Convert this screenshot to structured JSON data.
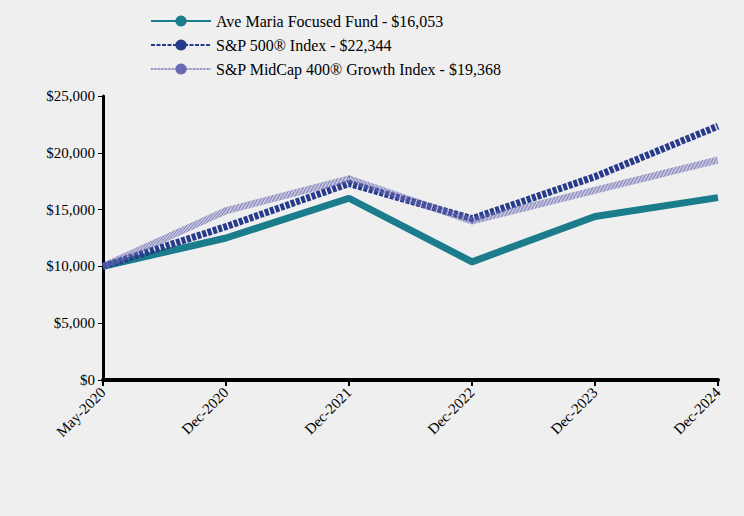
{
  "chart_data": {
    "type": "line",
    "categories": [
      "May-2020",
      "Dec-2020",
      "Dec-2021",
      "Dec-2022",
      "Dec-2023",
      "Dec-2024"
    ],
    "series": [
      {
        "name": "Ave Maria Focused Fund - $16,053",
        "color": "#1b7d8c",
        "line_style": "solid",
        "values": [
          10000,
          12500,
          16000,
          10400,
          14400,
          16053
        ]
      },
      {
        "name": "S&P 500® Index - $22,344",
        "color": "#283a8a",
        "line_style": "dashed",
        "values": [
          10000,
          13500,
          17300,
          14200,
          17900,
          22344
        ]
      },
      {
        "name": "S&P MidCap 400® Growth Index - $19,368",
        "color": "#6a6ab4",
        "line_style": "dotted",
        "values": [
          10000,
          14900,
          17700,
          14000,
          16700,
          19368
        ]
      }
    ],
    "ylim": [
      0,
      25000
    ],
    "yticks": [
      {
        "value": 0,
        "label": "$0"
      },
      {
        "value": 5000,
        "label": "$5,000"
      },
      {
        "value": 10000,
        "label": "$10,000"
      },
      {
        "value": 15000,
        "label": "$15,000"
      },
      {
        "value": 20000,
        "label": "$20,000"
      },
      {
        "value": 25000,
        "label": "$25,000"
      }
    ],
    "grid": false,
    "legend": "top-left"
  }
}
